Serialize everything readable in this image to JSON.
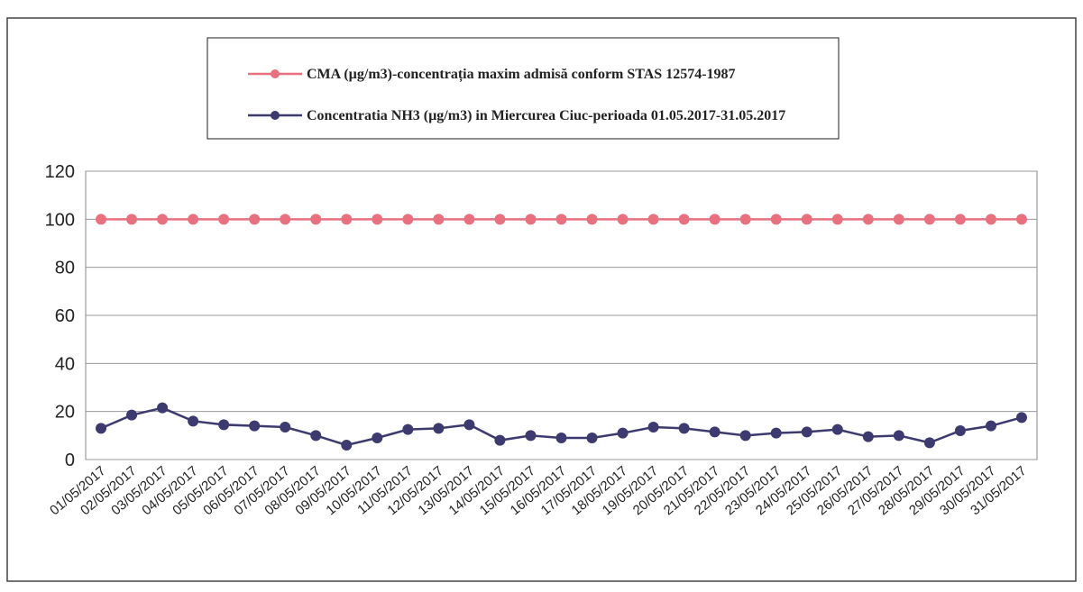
{
  "chart_data": {
    "type": "line",
    "categories": [
      "01/05/2017",
      "02/05/2017",
      "03/05/2017",
      "04/05/2017",
      "05/05/2017",
      "06/05/2017",
      "07/05/2017",
      "08/05/2017",
      "09/05/2017",
      "10/05/2017",
      "11/05/2017",
      "12/05/2017",
      "13/05/2017",
      "14/05/2017",
      "15/05/2017",
      "16/05/2017",
      "17/05/2017",
      "18/05/2017",
      "19/05/2017",
      "20/05/2017",
      "21/05/2017",
      "22/05/2017",
      "23/05/2017",
      "24/05/2017",
      "25/05/2017",
      "26/05/2017",
      "27/05/2017",
      "28/05/2017",
      "29/05/2017",
      "30/05/2017",
      "31/05/2017"
    ],
    "series": [
      {
        "name": "CMA (µg/m3)-concentrația maxim admisă conform STAS 12574-1987",
        "color": "#e8707f",
        "values": [
          100,
          100,
          100,
          100,
          100,
          100,
          100,
          100,
          100,
          100,
          100,
          100,
          100,
          100,
          100,
          100,
          100,
          100,
          100,
          100,
          100,
          100,
          100,
          100,
          100,
          100,
          100,
          100,
          100,
          100,
          100
        ]
      },
      {
        "name": "Concentratia NH3 (µg/m3) in Miercurea Ciuc-perioada 01.05.2017-31.05.2017",
        "color": "#3c3a6e",
        "values": [
          13,
          18.5,
          21.5,
          16,
          14.5,
          14,
          13.5,
          10,
          6,
          9,
          12.5,
          13,
          14.5,
          8,
          10,
          9,
          9,
          11,
          13.5,
          13,
          11.5,
          10,
          11,
          11.5,
          12.5,
          9.5,
          10,
          7,
          12,
          14,
          17.5
        ]
      }
    ],
    "ylim": [
      0,
      120
    ],
    "yticks": [
      0,
      20,
      40,
      60,
      80,
      100,
      120
    ],
    "grid": true
  }
}
